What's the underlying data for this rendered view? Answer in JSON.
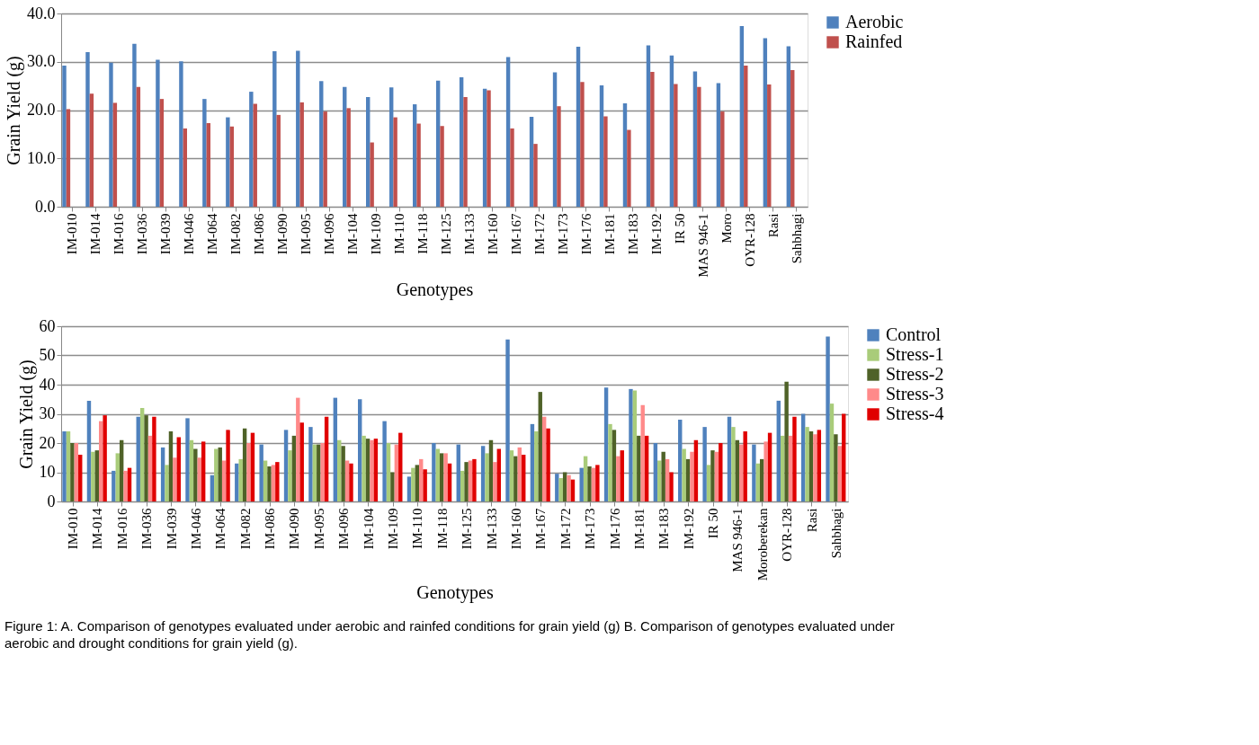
{
  "chart_data": [
    {
      "type": "bar",
      "xlabel": "Genotypes",
      "ylabel": "Grain Yield (g)",
      "categories": [
        "IM-010",
        "IM-014",
        "IM-016",
        "IM-036",
        "IM-039",
        "IM-046",
        "IM-064",
        "IM-082",
        "IM-086",
        "IM-090",
        "IM-095",
        "IM-096",
        "IM-104",
        "IM-109",
        "IM-110",
        "IM-118",
        "IM-125",
        "IM-133",
        "IM-160",
        "IM-167",
        "IM-172",
        "IM-173",
        "IM-176",
        "IM-181",
        "IM-183",
        "IM-192",
        "IR 50",
        "MAS 946-1",
        "Moro",
        "OYR-128",
        "Rasi",
        "Sahbhagi"
      ],
      "series": [
        {
          "name": "Aerobic",
          "color": "#4f81bd",
          "values": [
            29.2,
            32.0,
            29.8,
            33.7,
            30.4,
            30.1,
            22.3,
            18.5,
            23.8,
            32.2,
            32.3,
            26.0,
            24.8,
            22.7,
            24.7,
            21.2,
            26.1,
            26.8,
            24.4,
            31.0,
            18.6,
            27.8,
            33.1,
            25.1,
            21.4,
            33.4,
            31.3,
            28.0,
            25.6,
            37.4,
            34.9,
            33.2
          ]
        },
        {
          "name": "Rainfed",
          "color": "#c0504d",
          "values": [
            20.2,
            23.4,
            21.5,
            24.8,
            22.3,
            16.2,
            17.3,
            16.6,
            21.3,
            19.0,
            21.6,
            19.7,
            20.4,
            13.3,
            18.5,
            17.2,
            16.7,
            22.7,
            24.1,
            16.2,
            13.0,
            20.8,
            25.8,
            18.7,
            15.9,
            27.9,
            25.4,
            24.8,
            19.7,
            29.2,
            25.3,
            28.3
          ]
        }
      ],
      "ylim": [
        0,
        40
      ],
      "yticks": [
        {
          "value": 0,
          "label": "0.0"
        },
        {
          "value": 10,
          "label": "10.0"
        },
        {
          "value": 20,
          "label": "20.0"
        },
        {
          "value": 30,
          "label": "30.0"
        },
        {
          "value": 40,
          "label": "40.0"
        }
      ],
      "grid": "y",
      "legend": "right"
    },
    {
      "type": "bar",
      "xlabel": "Genotypes",
      "ylabel": "Grain Yield (g)",
      "categories": [
        "IM-010",
        "IM-014",
        "IM-016",
        "IM-036",
        "IM-039",
        "IM-046",
        "IM-064",
        "IM-082",
        "IM-086",
        "IM-090",
        "IM-095",
        "IM-096",
        "IM-104",
        "IM-109",
        "IM-110",
        "IM-118",
        "IM-125",
        "IM-133",
        "IM-160",
        "IM-167",
        "IM-172",
        "IM-173",
        "IM-176",
        "IM-181",
        "IM-183",
        "IM-192",
        "IR 50",
        "MAS 946-1",
        "Moroberekan",
        "OYR-128",
        "Rasi",
        "Sahbhagi"
      ],
      "series": [
        {
          "name": "Control",
          "color": "#4f81bd",
          "values": [
            24,
            34.5,
            10.5,
            29,
            18.5,
            28.5,
            9,
            13,
            19.5,
            24.5,
            25.5,
            35.5,
            35,
            27.5,
            8.5,
            20,
            19.5,
            19,
            55.5,
            26.5,
            9.5,
            11.5,
            39,
            38.5,
            20,
            28,
            25.5,
            29,
            19.5,
            34.5,
            30,
            56.5
          ]
        },
        {
          "name": "Stress-1",
          "color": "#a9cc7a",
          "values": [
            24,
            17,
            16.5,
            32,
            12.5,
            21,
            18,
            14.5,
            14,
            17.5,
            19.5,
            21,
            22.5,
            20,
            11.5,
            18,
            10.5,
            16.5,
            17.5,
            24,
            8,
            15.5,
            26.5,
            38,
            14,
            18,
            12.5,
            25.5,
            13,
            22.5,
            25.5,
            33.5
          ]
        },
        {
          "name": "Stress-2",
          "color": "#4f6228",
          "values": [
            20,
            17.5,
            21,
            29.5,
            24,
            18,
            18.5,
            25,
            12,
            22.5,
            19.5,
            19,
            21.5,
            10,
            12.5,
            16.5,
            13.5,
            21,
            15.5,
            37.5,
            10,
            12,
            24.5,
            22.5,
            17,
            14.5,
            17.5,
            21,
            14.5,
            41,
            24,
            23
          ]
        },
        {
          "name": "Stress-3",
          "color": "#ff8a8a",
          "values": [
            20,
            27.5,
            10.5,
            22.5,
            15,
            15,
            14,
            20,
            12.5,
            35.5,
            20,
            14,
            21,
            19.5,
            14.5,
            16.5,
            14,
            13.5,
            18.5,
            29,
            9,
            11.5,
            15.5,
            33,
            14.5,
            17,
            17,
            19.5,
            20.5,
            22.5,
            23,
            19
          ]
        },
        {
          "name": "Stress-4",
          "color": "#e00000",
          "values": [
            16,
            29.5,
            11.5,
            29,
            22,
            20.5,
            24.5,
            23.5,
            13.5,
            27,
            29,
            13,
            21.5,
            23.5,
            11,
            13,
            14.5,
            18,
            16,
            25,
            7.5,
            12.5,
            17.5,
            22.5,
            10,
            21,
            20,
            24,
            23.5,
            29,
            24.5,
            30
          ]
        }
      ],
      "ylim": [
        0,
        60
      ],
      "yticks": [
        0,
        10,
        20,
        30,
        40,
        50,
        60
      ],
      "grid": "y",
      "legend": "right",
      "annotations": [
        "Figure 1: A. Comparison of genotypes evaluated under aerobic and rainfed conditions for grain yield (g) B. Comparison of genotypes evaluated under aerobic and drought conditions for grain yield (g)."
      ]
    }
  ]
}
